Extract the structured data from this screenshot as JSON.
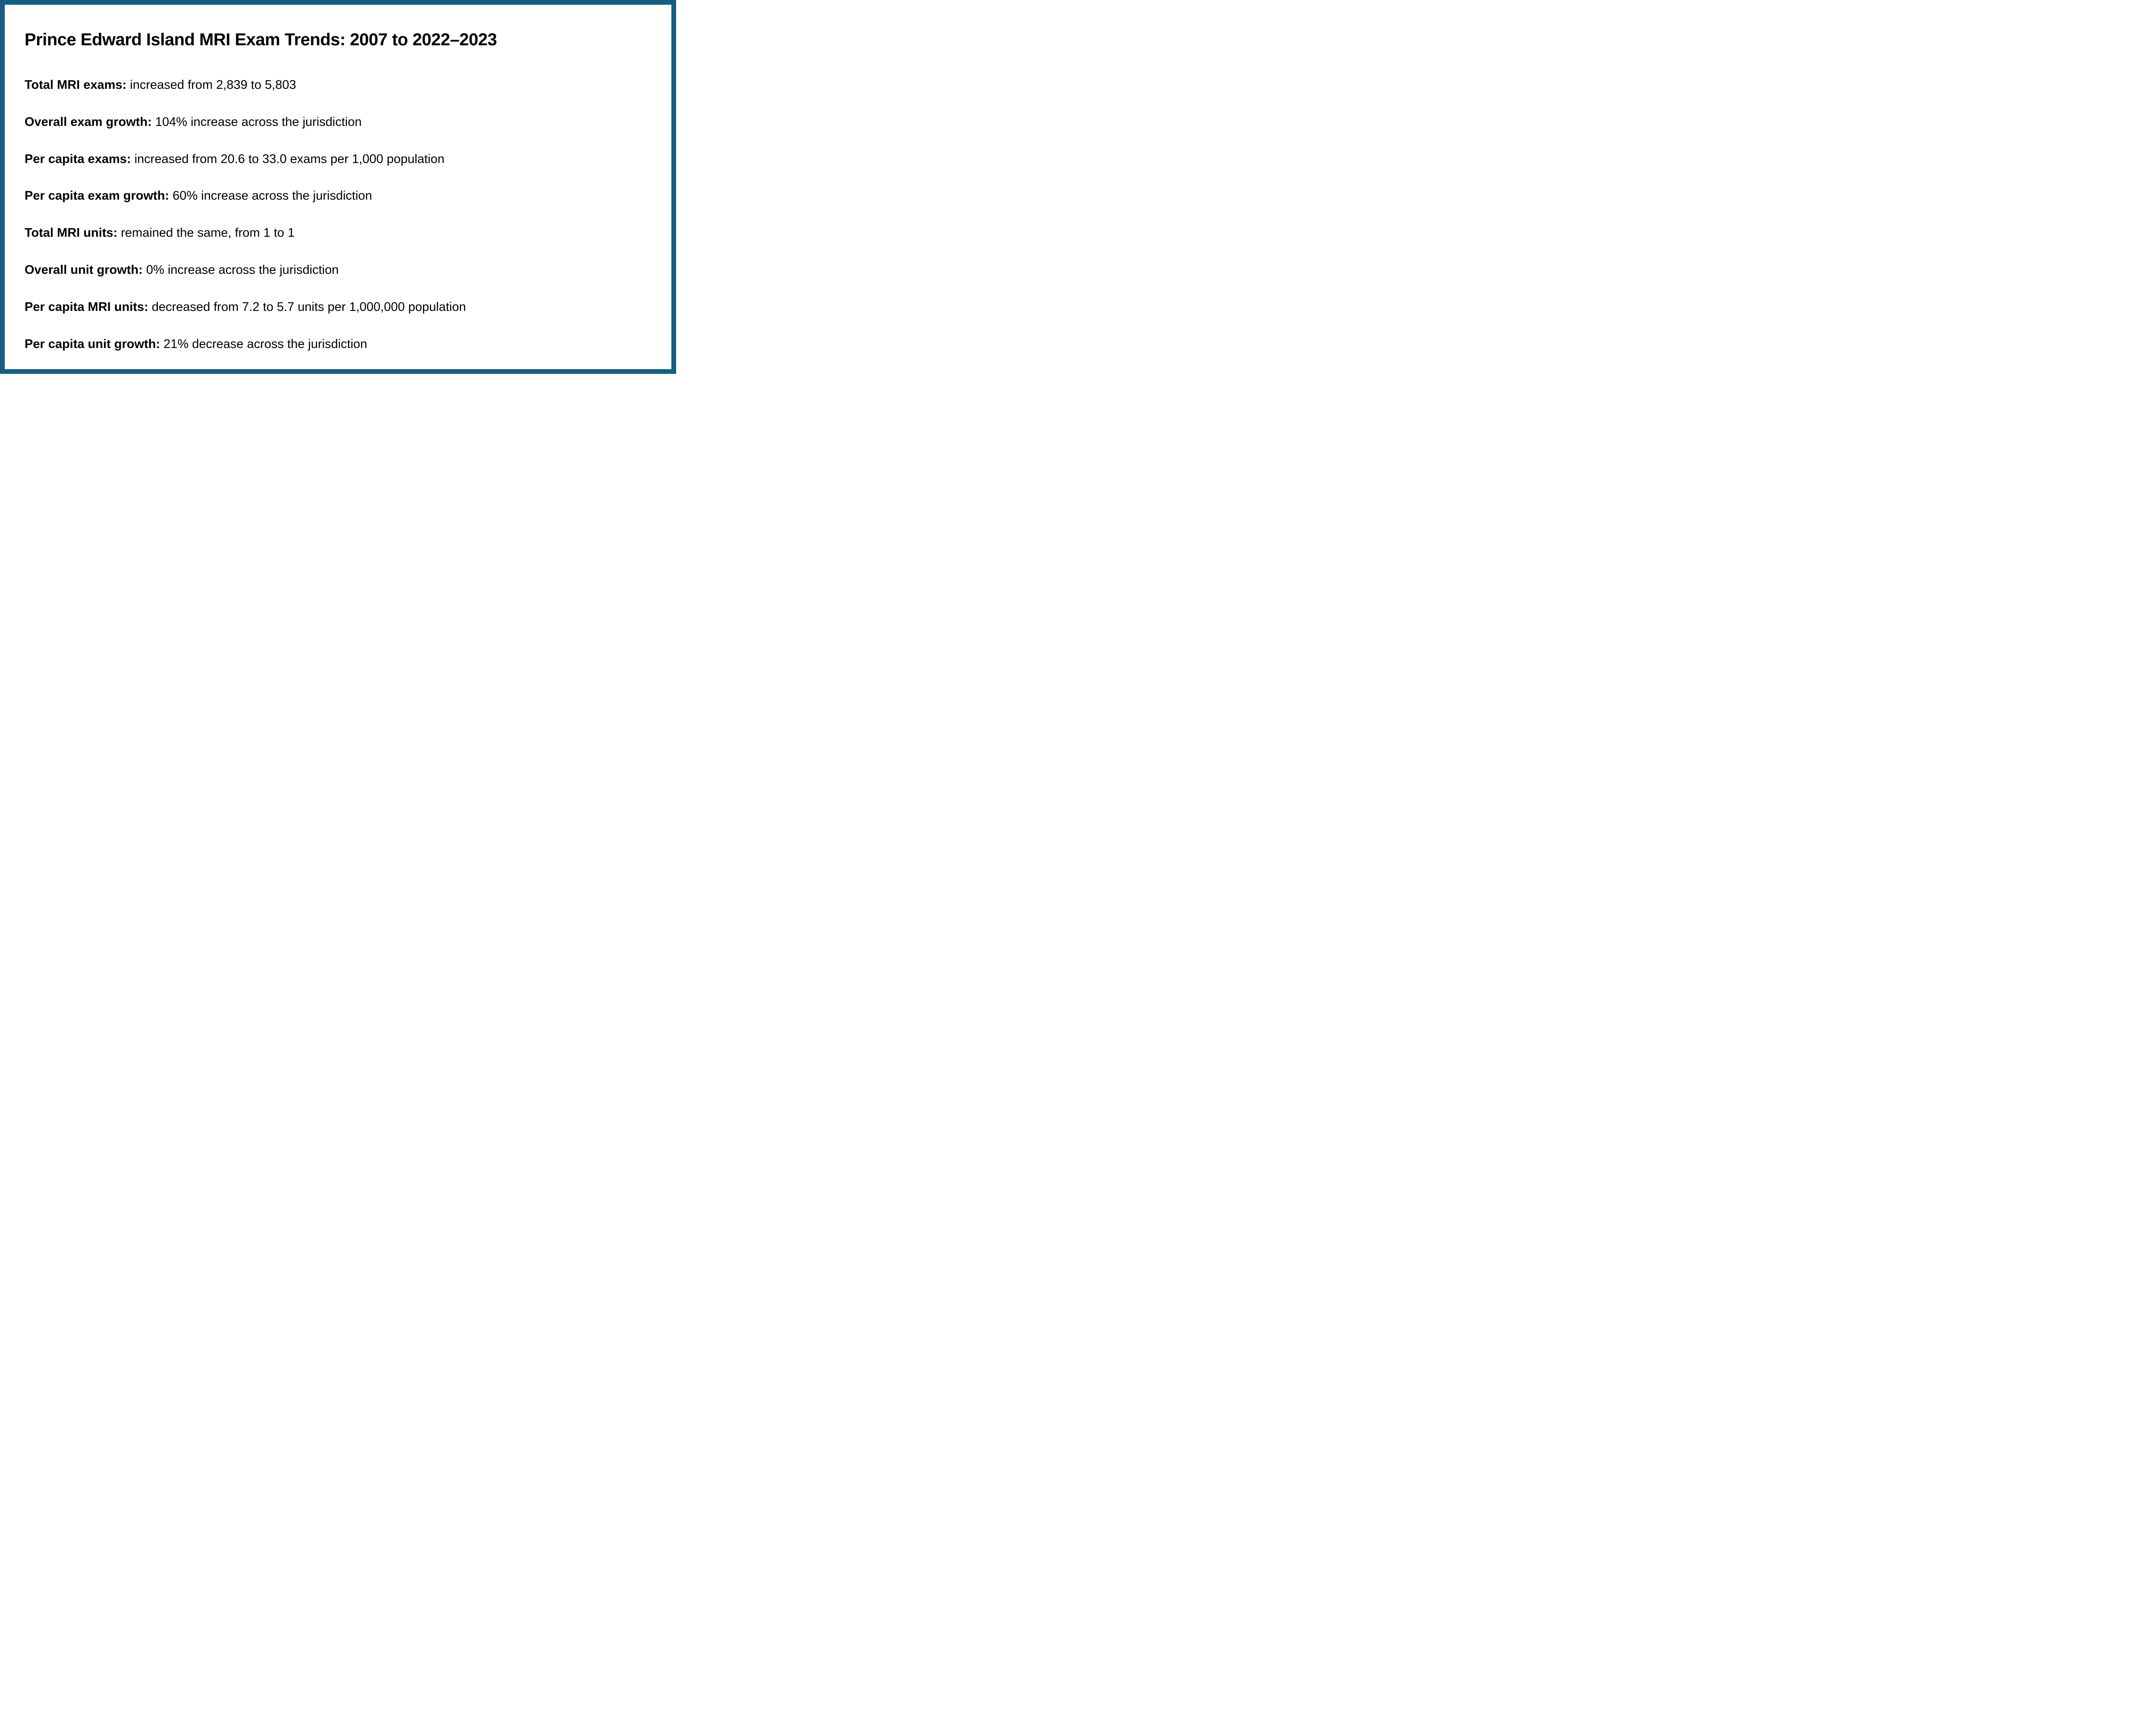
{
  "panel": {
    "border_color": "#165E80",
    "background_color": "#FFFFFF",
    "text_color": "#000000"
  },
  "title": "Prince Edward Island MRI Exam Trends: 2007 to 2022–2023",
  "stats": [
    {
      "label": "Total MRI exams:",
      "value": "increased from 2,839 to 5,803"
    },
    {
      "label": "Overall exam growth:",
      "value": "104% increase across the jurisdiction"
    },
    {
      "label": "Per capita exams:",
      "value": "increased from 20.6 to 33.0 exams per 1,000 population"
    },
    {
      "label": "Per capita exam growth:",
      "value": "60% increase across the jurisdiction"
    },
    {
      "label": "Total MRI units:",
      "value": "remained the same, from 1 to 1"
    },
    {
      "label": "Overall unit growth:",
      "value": "0% increase across the jurisdiction"
    },
    {
      "label": "Per capita MRI units:",
      "value": "decreased from 7.2 to 5.7 units per 1,000,000 population"
    },
    {
      "label": "Per capita unit growth:",
      "value": "21% decrease across the jurisdiction"
    }
  ]
}
